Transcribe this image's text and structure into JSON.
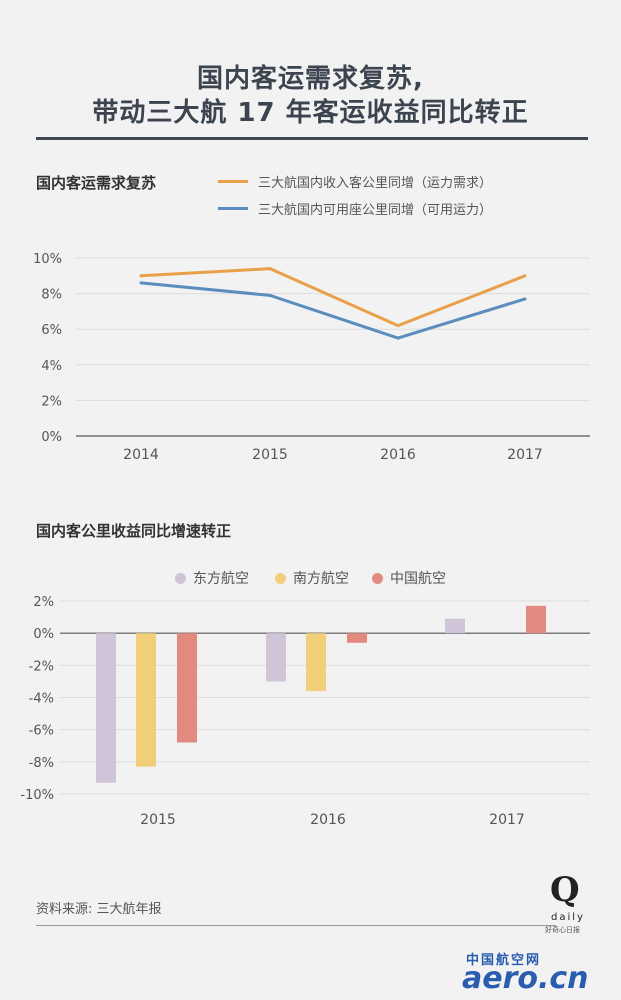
{
  "header": {
    "title_line1": "国内客运需求复苏,",
    "title_line2": "带动三大航 17 年客运收益同比转正"
  },
  "chart_data": [
    {
      "type": "line",
      "title": "国内客运需求复苏",
      "x": [
        "2014",
        "2015",
        "2016",
        "2017"
      ],
      "ylim": [
        0,
        10
      ],
      "yticks": [
        "0%",
        "2%",
        "4%",
        "6%",
        "8%",
        "10%"
      ],
      "grid": true,
      "legend_position": "top-right",
      "series": [
        {
          "name": "三大航国内收入客公里同增（运力需求）",
          "color": "#e8a14a",
          "values": [
            9.0,
            9.4,
            6.2,
            9.0
          ]
        },
        {
          "name": "三大航国内可用座公里同增（可用运力）",
          "color": "#5b8dbe",
          "values": [
            8.6,
            7.9,
            5.5,
            7.7
          ]
        }
      ]
    },
    {
      "type": "bar",
      "title": "国内客公里收益同比增速转正",
      "categories": [
        "2015",
        "2016",
        "2017"
      ],
      "ylim": [
        -10,
        2
      ],
      "yticks": [
        "2%",
        "0%",
        "-2%",
        "-4%",
        "-6%",
        "-8%",
        "-10%"
      ],
      "grid": true,
      "legend_position": "top",
      "series": [
        {
          "name": "东方航空",
          "color": "#cfc4d8",
          "values": [
            -9.3,
            -3.0,
            0.9
          ]
        },
        {
          "name": "南方航空",
          "color": "#f1cf78",
          "values": [
            -8.3,
            -3.6,
            null
          ]
        },
        {
          "name": "中国航空",
          "color": "#e38a80",
          "values": [
            -6.8,
            -0.6,
            1.7
          ]
        }
      ]
    }
  ],
  "footer": {
    "source": "资料来源: 三大航年报",
    "logo_q": "Q",
    "logo_daily": "daily",
    "logo_sub": "好奇心日报",
    "watermark_cn": "中国航空网",
    "watermark_en": "aero.cn"
  }
}
